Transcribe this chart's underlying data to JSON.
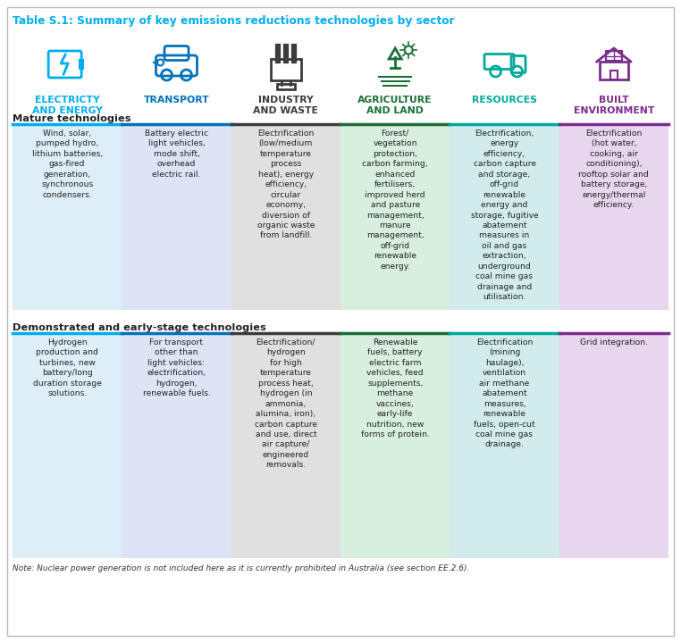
{
  "title": "Table S.1: Summary of key emissions reductions technologies by sector",
  "title_color": "#00AEEF",
  "note": "Note: Nuclear power generation is not included here as it is currently prohibited in Australia (see section EE.2.6).",
  "columns": [
    {
      "label": "ELECTRICTY\nAND ENERGY",
      "color": "#00AEEF",
      "bg_mature": "#ddeef8",
      "bg_demo": "#ddeef8",
      "border": "#00AEEF"
    },
    {
      "label": "TRANSPORT",
      "color": "#0072BC",
      "bg_mature": "#dde4f5",
      "bg_demo": "#dde4f5",
      "border": "#0072BC"
    },
    {
      "label": "INDUSTRY\nAND WASTE",
      "color": "#3C3C3C",
      "bg_mature": "#e0e0e0",
      "bg_demo": "#e0e0e0",
      "border": "#3C3C3C"
    },
    {
      "label": "AGRICULTURE\nAND LAND",
      "color": "#1a6e38",
      "bg_mature": "#d8eede",
      "bg_demo": "#d8eede",
      "border": "#1a6e38"
    },
    {
      "label": "RESOURCES",
      "color": "#00A99D",
      "bg_mature": "#d2eceb",
      "bg_demo": "#d2eceb",
      "border": "#00A99D"
    },
    {
      "label": "BUILT\nENVIRONMENT",
      "color": "#7B2D8B",
      "bg_mature": "#e8d5ee",
      "bg_demo": "#e8d5ee",
      "border": "#7B2D8B"
    }
  ],
  "section_mature": "Mature technologies",
  "section_demo": "Demonstrated and early-stage technologies",
  "mature_texts": [
    "Wind, solar,\npumped hydro,\nlithium batteries,\ngas-fired\ngeneration,\nsynchronous\ncondensers.",
    "Battery electric\nlight vehicles,\nmode shift,\noverhead\nelectric rail.",
    "Electrification\n(low/medium\ntemperature\nprocess\nheat), energy\nefficiency,\ncircular\neconomy,\ndiversion of\norganic waste\nfrom landfill.",
    "Forest/\nvegetation\nprotection,\ncarbon farming,\nenhanced\nfertilisers,\nimproved herd\nand pasture\nmanagement,\nmanure\nmanagement,\noff-grid\nrenewable\nenergy.",
    "Electrification,\nenergy\nefficiency,\ncarbon capture\nand storage,\noff-grid\nrenewable\nenergy and\nstorage, fugitive\nabatement\nmeasures in\noil and gas\nextraction,\nunderground\ncoal mine gas\ndrainage and\nutilisation.",
    "Electrification\n(hot water,\ncooking, air\nconditioning),\nrooftop solar and\nbattery storage,\nenergy/thermal\nefficiency."
  ],
  "demo_texts": [
    "Hydrogen\nproduction and\nturbines, new\nbattery/long\nduration storage\nsolutions.",
    "For transport\nother than\nlight vehicles:\nelectrification,\nhydrogen,\nrenewable fuels.",
    "Electrification/\nhydrogen\nfor high\ntemperature\nprocess heat,\nhydrogen (in\nammonia,\nalumina, iron),\ncarbon capture\nand use, direct\nair capture/\nengineered\nremovals.",
    "Renewable\nfuels, battery\nelectric farm\nvehicles, feed\nsupplements,\nmethane\nvaccines,\nearly-life\nnutrition, new\nforms of protein.",
    "Electrification\n(mining\nhaulage),\nventilation\nair methane\nabatement\nmeasures,\nrenewable\nfuels, open-cut\ncoal mine gas\ndrainage.",
    "Grid integration."
  ],
  "fig_width": 7.62,
  "fig_height": 7.2,
  "dpi": 100
}
